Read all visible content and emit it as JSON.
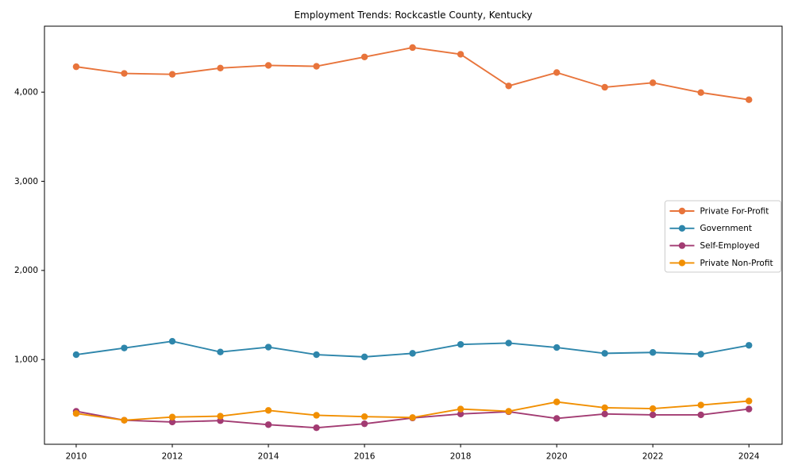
{
  "chart_data": {
    "type": "line",
    "title": "Employment Trends: Rockcastle County, Kentucky",
    "x": [
      2010,
      2011,
      2012,
      2013,
      2014,
      2015,
      2016,
      2017,
      2018,
      2019,
      2020,
      2021,
      2022,
      2023,
      2024
    ],
    "series": [
      {
        "name": "Private For-Profit",
        "color": "#E8743B",
        "values": [
          4285,
          4210,
          4200,
          4270,
          4300,
          4290,
          4395,
          4500,
          4425,
          4070,
          4220,
          4055,
          4105,
          3995,
          3915
        ]
      },
      {
        "name": "Government",
        "color": "#2E86AB",
        "values": [
          1055,
          1130,
          1205,
          1085,
          1140,
          1055,
          1030,
          1070,
          1170,
          1185,
          1135,
          1070,
          1080,
          1060,
          1160
        ]
      },
      {
        "name": "Self-Employed",
        "color": "#A23B72",
        "values": [
          420,
          320,
          300,
          315,
          270,
          235,
          280,
          345,
          390,
          415,
          340,
          390,
          380,
          380,
          445
        ]
      },
      {
        "name": "Private Non-Profit",
        "color": "#F18F01",
        "values": [
          395,
          320,
          355,
          365,
          430,
          375,
          360,
          350,
          445,
          420,
          525,
          460,
          450,
          490,
          535
        ]
      }
    ],
    "xticks": [
      2010,
      2012,
      2014,
      2016,
      2018,
      2020,
      2022,
      2024
    ],
    "ytick_values": [
      1000,
      2000,
      3000,
      4000
    ],
    "ytick_labels": [
      "1,000",
      "2,000",
      "3,000",
      "4,000"
    ],
    "xlim": [
      2009.34,
      2024.69
    ],
    "ylim": [
      50,
      4740
    ],
    "grid": false,
    "legend_position": "center right",
    "axis_color": "#000000",
    "background_color": "#ffffff"
  }
}
